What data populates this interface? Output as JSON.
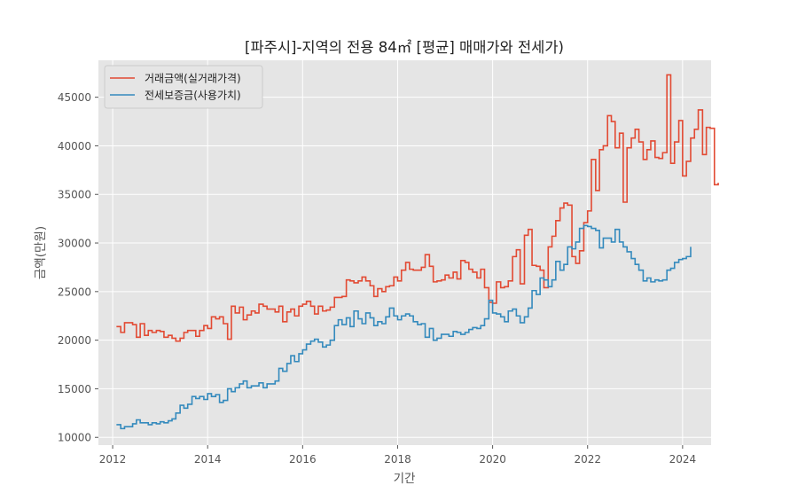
{
  "chart_data": {
    "type": "line",
    "title": "[파주시]-지역의 전용 84㎡ [평균] 매매가와 전세가)",
    "xlabel": "기간",
    "ylabel": "금액(만원)",
    "xlim": [
      2011.7,
      2024.6
    ],
    "ylim": [
      9200,
      48800
    ],
    "xticks": [
      2012,
      2014,
      2016,
      2018,
      2020,
      2022,
      2024
    ],
    "yticks": [
      10000,
      15000,
      20000,
      25000,
      30000,
      35000,
      40000,
      45000
    ],
    "grid": true,
    "legend_position": "top-left",
    "series": [
      {
        "name": "거래금액(실거래가격)",
        "color": "#E24A33",
        "points": [
          [
            2012.08,
            21400
          ],
          [
            2012.17,
            20800
          ],
          [
            2012.25,
            21800
          ],
          [
            2012.33,
            21800
          ],
          [
            2012.42,
            21600
          ],
          [
            2012.5,
            20300
          ],
          [
            2012.58,
            21700
          ],
          [
            2012.67,
            20500
          ],
          [
            2012.75,
            21000
          ],
          [
            2012.83,
            20800
          ],
          [
            2012.92,
            21000
          ],
          [
            2013.0,
            20900
          ],
          [
            2013.08,
            20300
          ],
          [
            2013.17,
            20500
          ],
          [
            2013.25,
            20200
          ],
          [
            2013.33,
            19900
          ],
          [
            2013.42,
            20200
          ],
          [
            2013.5,
            20800
          ],
          [
            2013.58,
            21000
          ],
          [
            2013.67,
            21000
          ],
          [
            2013.75,
            20400
          ],
          [
            2013.83,
            21000
          ],
          [
            2013.92,
            21500
          ],
          [
            2014.0,
            21200
          ],
          [
            2014.08,
            22400
          ],
          [
            2014.17,
            22200
          ],
          [
            2014.25,
            22400
          ],
          [
            2014.33,
            21700
          ],
          [
            2014.42,
            20100
          ],
          [
            2014.5,
            23500
          ],
          [
            2014.58,
            22800
          ],
          [
            2014.67,
            23400
          ],
          [
            2014.75,
            22100
          ],
          [
            2014.83,
            22600
          ],
          [
            2014.92,
            23000
          ],
          [
            2015.0,
            22800
          ],
          [
            2015.08,
            23700
          ],
          [
            2015.17,
            23500
          ],
          [
            2015.25,
            23200
          ],
          [
            2015.33,
            23200
          ],
          [
            2015.42,
            22900
          ],
          [
            2015.5,
            23500
          ],
          [
            2015.58,
            21900
          ],
          [
            2015.67,
            22900
          ],
          [
            2015.75,
            23200
          ],
          [
            2015.83,
            22500
          ],
          [
            2015.92,
            23500
          ],
          [
            2016.0,
            23700
          ],
          [
            2016.08,
            24000
          ],
          [
            2016.17,
            23500
          ],
          [
            2016.25,
            22700
          ],
          [
            2016.33,
            23500
          ],
          [
            2016.42,
            23000
          ],
          [
            2016.5,
            23100
          ],
          [
            2016.58,
            23400
          ],
          [
            2016.67,
            24400
          ],
          [
            2016.75,
            24400
          ],
          [
            2016.83,
            24500
          ],
          [
            2016.92,
            26200
          ],
          [
            2017.0,
            26100
          ],
          [
            2017.08,
            25900
          ],
          [
            2017.17,
            26100
          ],
          [
            2017.25,
            26500
          ],
          [
            2017.33,
            26100
          ],
          [
            2017.42,
            25600
          ],
          [
            2017.5,
            24500
          ],
          [
            2017.58,
            25300
          ],
          [
            2017.67,
            25000
          ],
          [
            2017.75,
            25500
          ],
          [
            2017.83,
            25600
          ],
          [
            2017.92,
            26500
          ],
          [
            2018.0,
            26100
          ],
          [
            2018.08,
            27200
          ],
          [
            2018.17,
            28000
          ],
          [
            2018.25,
            27300
          ],
          [
            2018.33,
            27200
          ],
          [
            2018.42,
            27200
          ],
          [
            2018.5,
            27500
          ],
          [
            2018.58,
            28800
          ],
          [
            2018.67,
            27600
          ],
          [
            2018.75,
            26000
          ],
          [
            2018.83,
            26100
          ],
          [
            2018.92,
            26200
          ],
          [
            2019.0,
            26700
          ],
          [
            2019.08,
            26400
          ],
          [
            2019.17,
            27000
          ],
          [
            2019.25,
            26300
          ],
          [
            2019.33,
            28200
          ],
          [
            2019.42,
            28000
          ],
          [
            2019.5,
            27300
          ],
          [
            2019.58,
            27000
          ],
          [
            2019.67,
            26400
          ],
          [
            2019.75,
            27300
          ],
          [
            2019.83,
            25400
          ],
          [
            2019.92,
            23900
          ],
          [
            2020.0,
            23800
          ],
          [
            2020.08,
            26000
          ],
          [
            2020.17,
            25400
          ],
          [
            2020.25,
            25500
          ],
          [
            2020.33,
            26100
          ],
          [
            2020.42,
            28600
          ],
          [
            2020.5,
            29300
          ],
          [
            2020.58,
            25800
          ],
          [
            2020.67,
            30800
          ],
          [
            2020.75,
            31400
          ],
          [
            2020.83,
            27700
          ],
          [
            2020.92,
            27600
          ],
          [
            2021.0,
            27200
          ],
          [
            2021.08,
            25400
          ],
          [
            2021.17,
            29600
          ],
          [
            2021.25,
            30700
          ],
          [
            2021.33,
            32300
          ],
          [
            2021.42,
            33600
          ],
          [
            2021.5,
            34100
          ],
          [
            2021.58,
            33900
          ],
          [
            2021.67,
            28600
          ],
          [
            2021.75,
            27900
          ],
          [
            2021.83,
            29200
          ],
          [
            2021.92,
            32100
          ],
          [
            2022.0,
            33300
          ],
          [
            2022.08,
            38600
          ],
          [
            2022.17,
            35400
          ],
          [
            2022.25,
            39600
          ],
          [
            2022.33,
            40000
          ],
          [
            2022.42,
            43100
          ],
          [
            2022.5,
            42500
          ],
          [
            2022.58,
            39800
          ],
          [
            2022.67,
            41300
          ],
          [
            2022.75,
            34200
          ],
          [
            2022.83,
            39800
          ],
          [
            2022.92,
            40800
          ],
          [
            2023.0,
            41700
          ],
          [
            2023.08,
            40400
          ],
          [
            2023.17,
            38600
          ],
          [
            2023.25,
            39600
          ],
          [
            2023.33,
            40500
          ],
          [
            2023.42,
            38800
          ],
          [
            2023.5,
            38700
          ],
          [
            2023.58,
            39300
          ],
          [
            2023.67,
            47300
          ],
          [
            2023.75,
            38200
          ],
          [
            2023.83,
            40400
          ],
          [
            2023.92,
            42600
          ],
          [
            2024.0,
            36900
          ],
          [
            2024.08,
            38400
          ],
          [
            2024.17,
            40800
          ],
          [
            2024.25,
            41700
          ],
          [
            2024.33,
            43700
          ],
          [
            2024.42,
            39100
          ],
          [
            2024.5,
            41900
          ],
          [
            2024.58,
            41800
          ],
          [
            2024.67,
            36000
          ],
          [
            2024.75,
            36200
          ]
        ]
      },
      {
        "name": "전세보증금(사용가치)",
        "color": "#348ABD",
        "points": [
          [
            2012.08,
            11300
          ],
          [
            2012.17,
            10900
          ],
          [
            2012.25,
            11100
          ],
          [
            2012.33,
            11100
          ],
          [
            2012.42,
            11400
          ],
          [
            2012.5,
            11800
          ],
          [
            2012.58,
            11500
          ],
          [
            2012.67,
            11500
          ],
          [
            2012.75,
            11300
          ],
          [
            2012.83,
            11500
          ],
          [
            2012.92,
            11400
          ],
          [
            2013.0,
            11600
          ],
          [
            2013.08,
            11500
          ],
          [
            2013.17,
            11700
          ],
          [
            2013.25,
            11900
          ],
          [
            2013.33,
            12500
          ],
          [
            2013.42,
            13300
          ],
          [
            2013.5,
            13000
          ],
          [
            2013.58,
            13400
          ],
          [
            2013.67,
            14200
          ],
          [
            2013.75,
            14000
          ],
          [
            2013.83,
            14200
          ],
          [
            2013.92,
            13900
          ],
          [
            2014.0,
            14500
          ],
          [
            2014.08,
            14200
          ],
          [
            2014.17,
            14400
          ],
          [
            2014.25,
            13600
          ],
          [
            2014.33,
            13800
          ],
          [
            2014.42,
            15000
          ],
          [
            2014.5,
            14700
          ],
          [
            2014.58,
            15100
          ],
          [
            2014.67,
            15500
          ],
          [
            2014.75,
            15800
          ],
          [
            2014.83,
            15100
          ],
          [
            2014.92,
            15300
          ],
          [
            2015.0,
            15300
          ],
          [
            2015.08,
            15600
          ],
          [
            2015.17,
            15100
          ],
          [
            2015.25,
            15500
          ],
          [
            2015.33,
            15500
          ],
          [
            2015.42,
            15800
          ],
          [
            2015.5,
            17100
          ],
          [
            2015.58,
            16800
          ],
          [
            2015.67,
            17600
          ],
          [
            2015.75,
            18400
          ],
          [
            2015.83,
            17800
          ],
          [
            2015.92,
            18600
          ],
          [
            2016.0,
            19000
          ],
          [
            2016.08,
            19600
          ],
          [
            2016.17,
            19900
          ],
          [
            2016.25,
            20100
          ],
          [
            2016.33,
            19800
          ],
          [
            2016.42,
            19300
          ],
          [
            2016.5,
            19500
          ],
          [
            2016.58,
            20000
          ],
          [
            2016.67,
            21500
          ],
          [
            2016.75,
            22100
          ],
          [
            2016.83,
            21600
          ],
          [
            2016.92,
            22300
          ],
          [
            2017.0,
            21400
          ],
          [
            2017.08,
            23000
          ],
          [
            2017.17,
            22200
          ],
          [
            2017.25,
            21700
          ],
          [
            2017.33,
            22800
          ],
          [
            2017.42,
            22300
          ],
          [
            2017.5,
            21500
          ],
          [
            2017.58,
            21900
          ],
          [
            2017.67,
            21700
          ],
          [
            2017.75,
            22400
          ],
          [
            2017.83,
            23300
          ],
          [
            2017.92,
            22500
          ],
          [
            2018.0,
            22100
          ],
          [
            2018.08,
            22500
          ],
          [
            2018.17,
            22700
          ],
          [
            2018.25,
            22500
          ],
          [
            2018.33,
            21900
          ],
          [
            2018.42,
            21600
          ],
          [
            2018.5,
            21700
          ],
          [
            2018.58,
            20300
          ],
          [
            2018.67,
            21200
          ],
          [
            2018.75,
            20000
          ],
          [
            2018.83,
            20200
          ],
          [
            2018.92,
            20600
          ],
          [
            2019.0,
            20600
          ],
          [
            2019.08,
            20400
          ],
          [
            2019.17,
            20900
          ],
          [
            2019.25,
            20800
          ],
          [
            2019.33,
            20600
          ],
          [
            2019.42,
            20800
          ],
          [
            2019.5,
            21100
          ],
          [
            2019.58,
            21300
          ],
          [
            2019.67,
            21200
          ],
          [
            2019.75,
            21500
          ],
          [
            2019.83,
            22200
          ],
          [
            2019.92,
            24100
          ],
          [
            2020.0,
            22800
          ],
          [
            2020.08,
            22700
          ],
          [
            2020.17,
            22400
          ],
          [
            2020.25,
            21900
          ],
          [
            2020.33,
            23000
          ],
          [
            2020.42,
            23200
          ],
          [
            2020.5,
            22500
          ],
          [
            2020.58,
            21800
          ],
          [
            2020.67,
            22400
          ],
          [
            2020.75,
            23300
          ],
          [
            2020.83,
            25100
          ],
          [
            2020.92,
            24700
          ],
          [
            2021.0,
            26400
          ],
          [
            2021.08,
            26200
          ],
          [
            2021.17,
            25500
          ],
          [
            2021.25,
            26200
          ],
          [
            2021.33,
            28100
          ],
          [
            2021.42,
            27200
          ],
          [
            2021.5,
            27800
          ],
          [
            2021.58,
            29600
          ],
          [
            2021.67,
            29400
          ],
          [
            2021.75,
            30100
          ],
          [
            2021.83,
            31500
          ],
          [
            2021.92,
            31800
          ],
          [
            2022.0,
            31700
          ],
          [
            2022.08,
            31500
          ],
          [
            2022.17,
            31300
          ],
          [
            2022.25,
            29500
          ],
          [
            2022.33,
            30500
          ],
          [
            2022.42,
            30500
          ],
          [
            2022.5,
            30100
          ],
          [
            2022.58,
            31400
          ],
          [
            2022.67,
            30100
          ],
          [
            2022.75,
            29600
          ],
          [
            2022.83,
            29100
          ],
          [
            2022.92,
            28400
          ],
          [
            2023.0,
            27800
          ],
          [
            2023.08,
            27200
          ],
          [
            2023.17,
            26100
          ],
          [
            2023.25,
            26400
          ],
          [
            2023.33,
            26000
          ],
          [
            2023.42,
            26200
          ],
          [
            2023.5,
            26100
          ],
          [
            2023.58,
            26200
          ],
          [
            2023.67,
            27200
          ],
          [
            2023.75,
            27400
          ],
          [
            2023.83,
            28000
          ],
          [
            2023.92,
            28300
          ],
          [
            2024.0,
            28400
          ],
          [
            2024.08,
            28600
          ],
          [
            2024.17,
            29600
          ]
        ]
      }
    ]
  }
}
